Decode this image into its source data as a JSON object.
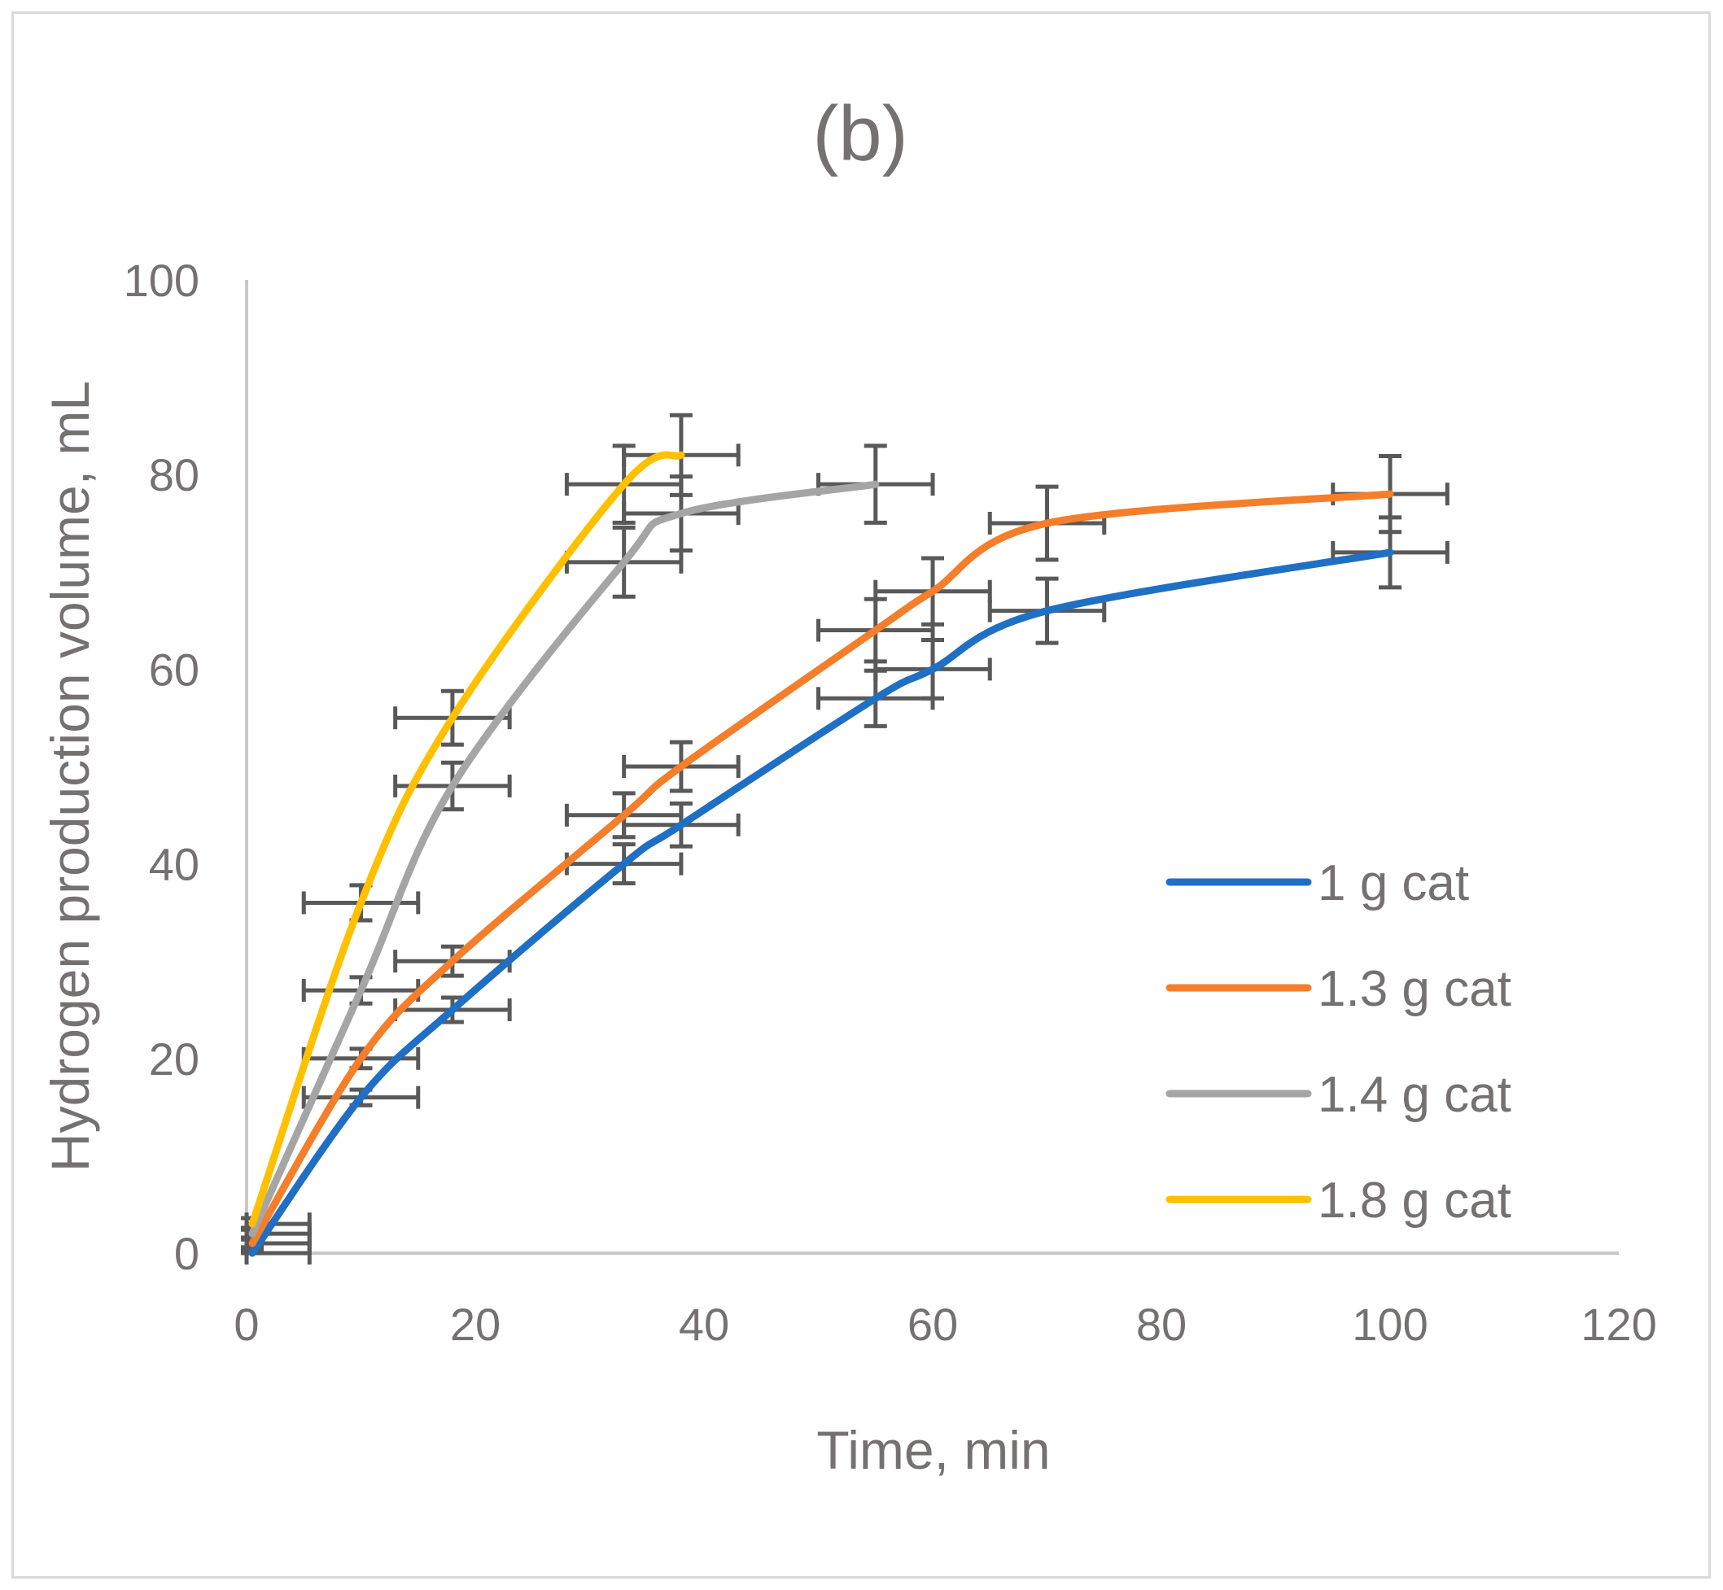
{
  "chart_data": {
    "type": "line",
    "title": "(b)",
    "xlabel": "Time, min",
    "ylabel": "Hydrogen production volume, mL",
    "xlim": [
      0,
      120
    ],
    "ylim": [
      0,
      100
    ],
    "x_ticks": [
      0,
      20,
      40,
      60,
      80,
      100,
      120
    ],
    "y_ticks": [
      0,
      20,
      40,
      60,
      80,
      100
    ],
    "grid": false,
    "legend_position": "right",
    "error_bars": {
      "x_error": 5,
      "y_error_fraction": 0.05
    },
    "series": [
      {
        "name": "1 g cat",
        "color": "#1f6fc4",
        "points": [
          [
            0.5,
            0
          ],
          [
            10,
            16
          ],
          [
            18,
            25
          ],
          [
            33,
            40
          ],
          [
            38,
            44
          ],
          [
            55,
            57
          ],
          [
            60,
            60
          ],
          [
            70,
            66
          ],
          [
            100,
            72
          ]
        ]
      },
      {
        "name": "1.3 g cat",
        "color": "#f47e2a",
        "points": [
          [
            0.5,
            1
          ],
          [
            10,
            20
          ],
          [
            18,
            30
          ],
          [
            33,
            45
          ],
          [
            38,
            50
          ],
          [
            55,
            64
          ],
          [
            60,
            68
          ],
          [
            70,
            75
          ],
          [
            100,
            78
          ]
        ]
      },
      {
        "name": "1.4 g cat",
        "color": "#a5a5a5",
        "points": [
          [
            0.5,
            2
          ],
          [
            10,
            27
          ],
          [
            18,
            48
          ],
          [
            33,
            71
          ],
          [
            38,
            76
          ],
          [
            55,
            79
          ]
        ]
      },
      {
        "name": "1.8 g cat",
        "color": "#ffc000",
        "points": [
          [
            0.5,
            3
          ],
          [
            10,
            36
          ],
          [
            18,
            55
          ],
          [
            33,
            79
          ],
          [
            38,
            82
          ]
        ]
      }
    ]
  },
  "colors": {
    "axis": "#c9c9c9",
    "error_bar": "#595959",
    "text": "#767171"
  }
}
